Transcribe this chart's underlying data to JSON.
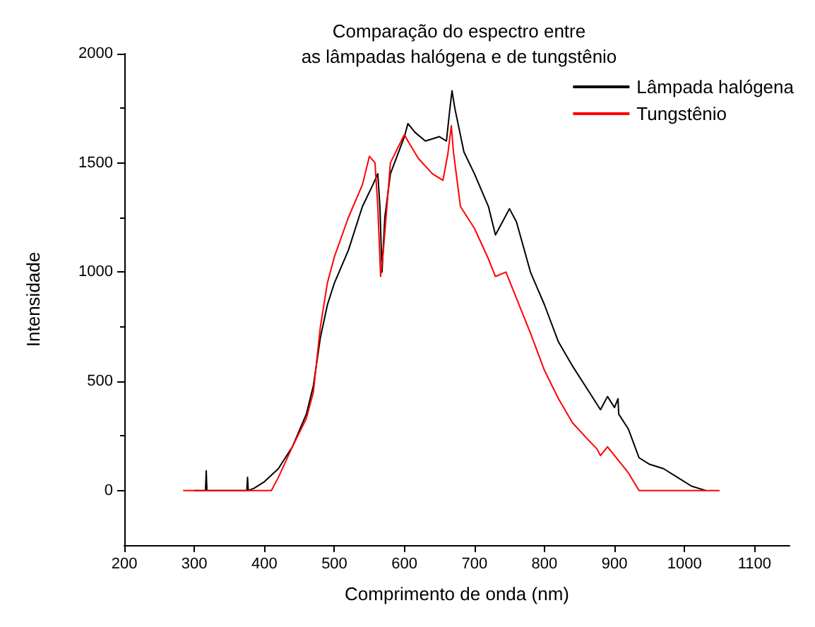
{
  "chart_data": {
    "type": "line",
    "title": "Comparação do espectro entre\nas lâmpadas halógena e de tungstênio",
    "xlabel": "Comprimento de onda (nm)",
    "ylabel": "Intensidade",
    "xlim": [
      200,
      1150
    ],
    "xticks": [
      200,
      300,
      400,
      500,
      600,
      700,
      800,
      900,
      1000,
      1100
    ],
    "ylim": [
      -250,
      2000
    ],
    "yticks": [
      0,
      500,
      1000,
      1500,
      2000
    ],
    "grid": false,
    "legend": "top right",
    "marker": "none",
    "line_style": "solid",
    "series": [
      {
        "name": "Lâmpada halógena",
        "color": "#000000",
        "x": [
          300,
          316,
          317,
          318,
          375,
          376,
          377,
          385,
          400,
          420,
          440,
          460,
          470,
          480,
          490,
          500,
          520,
          540,
          555,
          562,
          565,
          568,
          572,
          580,
          600,
          605,
          615,
          630,
          650,
          660,
          665,
          668,
          672,
          685,
          700,
          720,
          730,
          740,
          750,
          760,
          780,
          800,
          820,
          840,
          860,
          870,
          880,
          890,
          900,
          905,
          906,
          920,
          935,
          950,
          970,
          990,
          1010,
          1030
        ],
        "values": [
          0,
          0,
          90,
          0,
          0,
          60,
          0,
          10,
          40,
          100,
          200,
          350,
          480,
          700,
          850,
          950,
          1100,
          1300,
          1400,
          1450,
          1300,
          1000,
          1250,
          1450,
          1620,
          1680,
          1640,
          1600,
          1620,
          1600,
          1750,
          1830,
          1750,
          1550,
          1450,
          1300,
          1170,
          1230,
          1290,
          1230,
          1000,
          850,
          680,
          570,
          470,
          420,
          370,
          430,
          380,
          420,
          350,
          280,
          150,
          120,
          100,
          60,
          20,
          0
        ]
      },
      {
        "name": "Tungstênio",
        "color": "#ff0000",
        "x": [
          284,
          410,
          420,
          440,
          460,
          470,
          480,
          490,
          500,
          520,
          540,
          550,
          558,
          562,
          566,
          570,
          580,
          600,
          605,
          620,
          640,
          655,
          662,
          667,
          670,
          680,
          700,
          720,
          730,
          745,
          755,
          780,
          800,
          820,
          840,
          860,
          875,
          880,
          890,
          900,
          920,
          935,
          1050
        ],
        "values": [
          0,
          0,
          60,
          200,
          330,
          450,
          750,
          950,
          1070,
          1250,
          1400,
          1530,
          1500,
          1300,
          980,
          1100,
          1500,
          1630,
          1600,
          1520,
          1450,
          1420,
          1540,
          1670,
          1550,
          1300,
          1200,
          1060,
          980,
          1000,
          920,
          720,
          550,
          420,
          310,
          240,
          190,
          160,
          200,
          160,
          80,
          0,
          0
        ]
      }
    ]
  }
}
